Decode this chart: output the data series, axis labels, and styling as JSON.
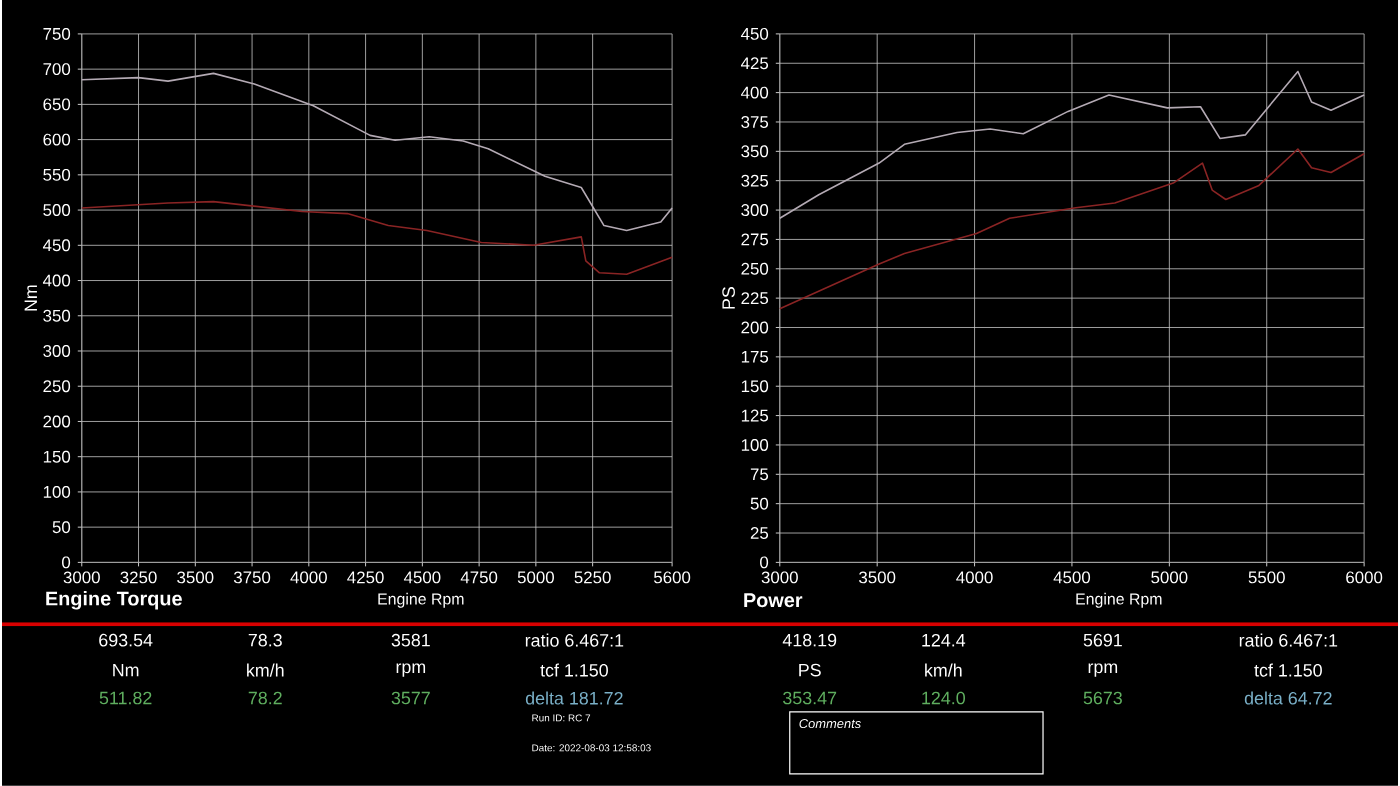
{
  "chart_data": [
    {
      "type": "line",
      "title": "Engine Torque",
      "xlabel": "Engine Rpm",
      "ylabel": "Nm",
      "xlim": [
        3000,
        5600
      ],
      "ylim": [
        0,
        750
      ],
      "xticks": [
        3000,
        3250,
        3500,
        3750,
        4000,
        4250,
        4500,
        4750,
        5000,
        5250,
        5600
      ],
      "yticks": [
        0,
        50,
        100,
        150,
        200,
        250,
        300,
        350,
        400,
        450,
        500,
        550,
        600,
        650,
        700,
        750
      ],
      "grid": true,
      "series": [
        {
          "color": "#b4aab4",
          "x": [
            3000,
            3250,
            3380,
            3580,
            3760,
            4020,
            4270,
            4380,
            4530,
            4680,
            4790,
            5040,
            5200,
            5250,
            5300,
            5400,
            5550,
            5600
          ],
          "values": [
            685,
            688,
            683,
            694,
            679,
            648,
            606,
            599,
            604,
            598,
            587,
            548,
            532,
            505,
            478,
            471,
            483,
            503
          ]
        },
        {
          "color": "#8a2424",
          "x": [
            3000,
            3380,
            3580,
            3970,
            4170,
            4350,
            4520,
            4760,
            4990,
            5200,
            5220,
            5280,
            5400,
            5600
          ],
          "values": [
            503,
            510,
            512,
            498,
            495,
            478,
            471,
            454,
            450,
            462,
            428,
            411,
            409,
            433
          ]
        }
      ],
      "annotations": [
        "693.54",
        "78.3",
        "3581",
        "ratio 6.467:1",
        "Nm",
        "km/h",
        "rpm",
        "tcf 1.150",
        "511.82",
        "78.2",
        "3577",
        "delta 181.72",
        "Run ID: RC 7",
        "Date: 2022-08-03 12:58:03"
      ]
    },
    {
      "type": "line",
      "title": "Power",
      "xlabel": "Engine Rpm",
      "ylabel": "PS",
      "xlim": [
        3000,
        6000
      ],
      "ylim": [
        0,
        450
      ],
      "xticks": [
        3000,
        3500,
        4000,
        4500,
        5000,
        5500,
        6000
      ],
      "yticks": [
        0,
        25,
        50,
        75,
        100,
        125,
        150,
        175,
        200,
        225,
        250,
        275,
        300,
        325,
        350,
        375,
        400,
        425,
        450
      ],
      "grid": true,
      "series": [
        {
          "color": "#b4aab4",
          "x": [
            3000,
            3200,
            3510,
            3640,
            3910,
            4080,
            4250,
            4480,
            4690,
            4990,
            5160,
            5260,
            5390,
            5660,
            5730,
            5830,
            6000
          ],
          "values": [
            293,
            313,
            340,
            356,
            366,
            369,
            365,
            384,
            398,
            387,
            388,
            361,
            364,
            418,
            392,
            385,
            398
          ]
        },
        {
          "color": "#8a2424",
          "x": [
            3000,
            3510,
            3640,
            4010,
            4180,
            4520,
            4720,
            5020,
            5170,
            5220,
            5290,
            5460,
            5660,
            5730,
            5830,
            6000
          ],
          "values": [
            216,
            254,
            263,
            280,
            293,
            302,
            306,
            323,
            340,
            317,
            309,
            321,
            352,
            336,
            332,
            348
          ]
        }
      ],
      "annotations": [
        "418.19",
        "124.4",
        "5691",
        "ratio 6.467:1",
        "PS",
        "km/h",
        "rpm",
        "tcf 1.150",
        "353.47",
        "124.0",
        "5673",
        "delta 64.72",
        "Comments"
      ]
    }
  ]
}
